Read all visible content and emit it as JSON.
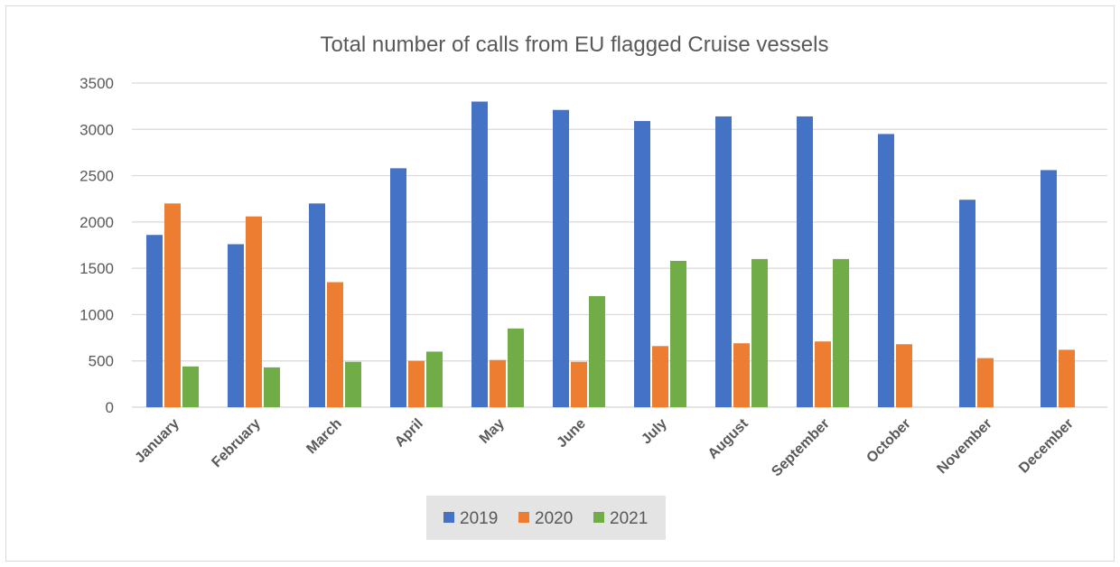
{
  "chart_data": {
    "type": "bar",
    "title": "Total number of calls from EU flagged Cruise vessels",
    "xlabel": "",
    "ylabel": "",
    "categories": [
      "January",
      "February",
      "March",
      "April",
      "May",
      "June",
      "July",
      "August",
      "September",
      "October",
      "November",
      "December"
    ],
    "series": [
      {
        "name": "2019",
        "color": "#4472c4",
        "values": [
          1860,
          1760,
          2200,
          2580,
          3300,
          3210,
          3090,
          3140,
          3140,
          2950,
          2240,
          2560
        ]
      },
      {
        "name": "2020",
        "color": "#ed7d31",
        "values": [
          2200,
          2060,
          1350,
          500,
          510,
          490,
          660,
          690,
          710,
          680,
          530,
          620
        ]
      },
      {
        "name": "2021",
        "color": "#70ad47",
        "values": [
          440,
          430,
          490,
          600,
          850,
          1200,
          1580,
          1600,
          1600,
          null,
          null,
          null
        ]
      }
    ],
    "ylim": [
      0,
      3500
    ],
    "yticks": [
      0,
      500,
      1000,
      1500,
      2000,
      2500,
      3000,
      3500
    ],
    "grid": true,
    "legend_position": "bottom"
  }
}
